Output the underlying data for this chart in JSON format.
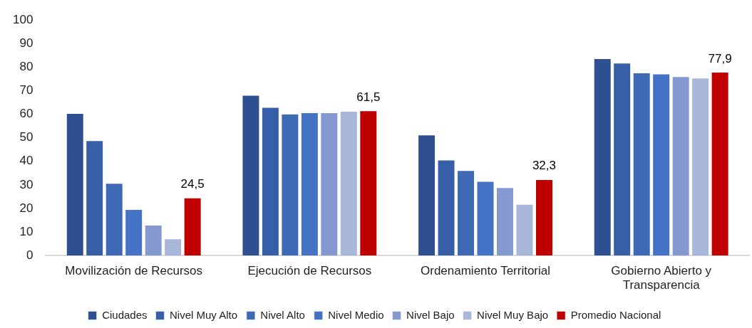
{
  "chart_data": {
    "type": "bar",
    "categories": [
      "Movilización de Recursos",
      "Ejecución de Recursos",
      "Ordenamiento Territorial",
      "Gobierno Abierto y Transparencia"
    ],
    "series": [
      {
        "name": "Ciudades",
        "color": "#2f5090",
        "values": [
          60.4,
          68.1,
          51.2,
          83.6
        ]
      },
      {
        "name": "Nivel Muy Alto",
        "color": "#365fa8",
        "values": [
          48.8,
          62.9,
          40.6,
          81.7
        ]
      },
      {
        "name": "Nivel Alto",
        "color": "#3d69b5",
        "values": [
          30.7,
          60.1,
          36.1,
          77.6
        ]
      },
      {
        "name": "Nivel Medio",
        "color": "#4472c4",
        "values": [
          19.6,
          60.7,
          31.5,
          77.1
        ]
      },
      {
        "name": "Nivel Bajo",
        "color": "#8399d0",
        "values": [
          12.9,
          60.7,
          28.9,
          76.0
        ]
      },
      {
        "name": "Nivel Muy Bajo",
        "color": "#a8b6da",
        "values": [
          7.1,
          61.3,
          21.8,
          75.4
        ]
      },
      {
        "name": "Promedio Nacional",
        "color": "#c00000",
        "values": [
          24.5,
          61.5,
          32.3,
          77.9
        ],
        "value_labels": [
          "24,5",
          "61,5",
          "32,3",
          "77,9"
        ]
      }
    ],
    "ylim": [
      0,
      100
    ],
    "yticks": [
      0,
      10,
      20,
      30,
      40,
      50,
      60,
      70,
      80,
      90,
      100
    ],
    "grid": false,
    "legend": "bottom"
  }
}
